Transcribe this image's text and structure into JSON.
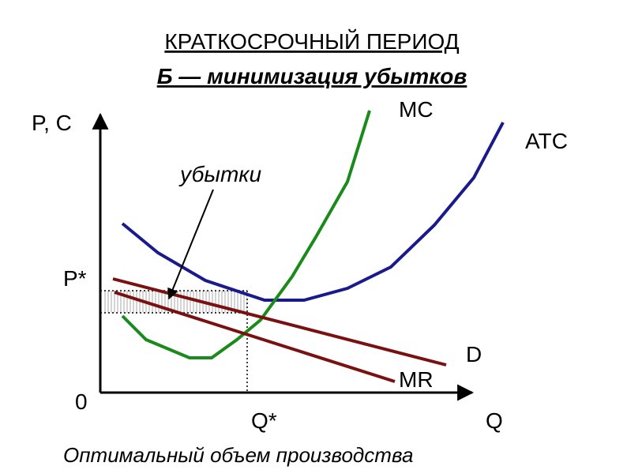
{
  "header": {
    "title": "КРАТКОСРОЧНЫЙ ПЕРИОД",
    "subtitle": "Б — минимизация убытков"
  },
  "axes": {
    "y_label": "P, C",
    "x_label": "Q",
    "origin": "0",
    "price_label": "P*",
    "quantity_label": "Q*"
  },
  "curves": {
    "mc": "MC",
    "atc": "ATC",
    "demand": "D",
    "mr": "MR"
  },
  "annotation": "убытки",
  "caption": "Оптимальный объем производства"
}
